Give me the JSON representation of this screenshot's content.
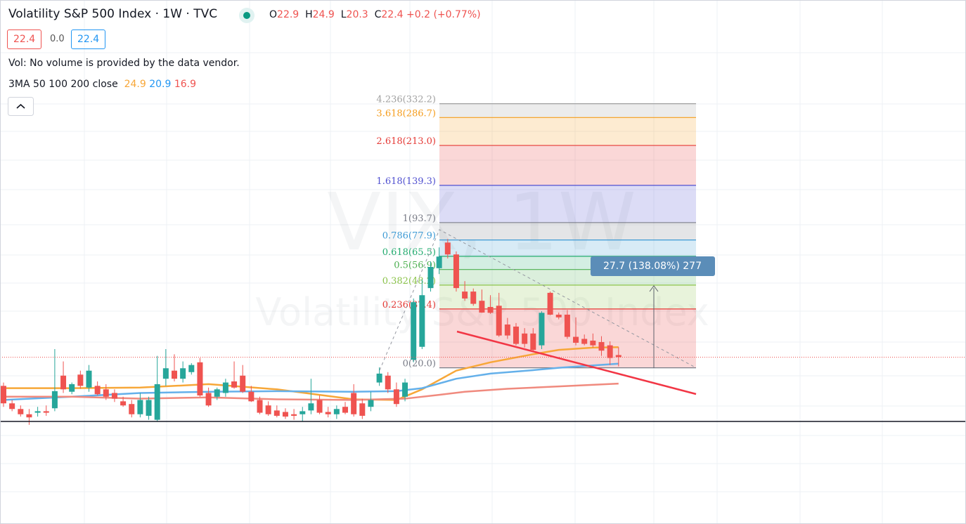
{
  "header": {
    "title": "Volatility S&P 500 Index · 1W · TVC",
    "ohlc_letters": [
      "O",
      "H",
      "L",
      "C"
    ],
    "change": "+0.2 (+0.77%)",
    "quote": [
      "22.4",
      "0.0",
      "22.4"
    ],
    "volume_note": "Vol: No volume is provided by the data vendor.",
    "ma_title": "3MA 50 100 200 close"
  },
  "chart_data": {
    "type": "candlestick",
    "log": true,
    "ylim": [
      11.3,
      351.6
    ],
    "up_color": "#26a69a",
    "down_color": "#ef5350",
    "watermark": [
      "VIX, 1W",
      "Volatility S&P 500 Index"
    ],
    "candles": [
      [
        16.5,
        17.1,
        13.2,
        13.7
      ],
      [
        13.7,
        14.2,
        12.6,
        12.9
      ],
      [
        12.9,
        13.4,
        11.9,
        12.2
      ],
      [
        12.2,
        12.9,
        10.9,
        11.8
      ],
      [
        12.4,
        13.2,
        11.9,
        12.6
      ],
      [
        12.6,
        13.4,
        12.0,
        12.4
      ],
      [
        13.0,
        24.4,
        12.6,
        15.6
      ],
      [
        18.4,
        21.4,
        15.3,
        15.9
      ],
      [
        15.5,
        17.1,
        15.1,
        16.8
      ],
      [
        18.6,
        19.4,
        16.0,
        16.5
      ],
      [
        16.2,
        20.6,
        15.5,
        19.4
      ],
      [
        16.5,
        17.3,
        14.9,
        15.1
      ],
      [
        15.9,
        16.8,
        14.2,
        14.7
      ],
      [
        15.3,
        15.9,
        13.9,
        14.4
      ],
      [
        14.0,
        14.7,
        13.2,
        13.4
      ],
      [
        13.6,
        14.2,
        11.8,
        12.2
      ],
      [
        12.2,
        15.3,
        11.8,
        14.2
      ],
      [
        12.0,
        14.7,
        11.5,
        14.2
      ],
      [
        11.5,
        22.7,
        11.3,
        16.8
      ],
      [
        17.8,
        24.4,
        16.5,
        19.9
      ],
      [
        19.4,
        23.1,
        17.3,
        17.8
      ],
      [
        17.8,
        21.4,
        17.1,
        19.9
      ],
      [
        19.1,
        21.0,
        18.6,
        20.6
      ],
      [
        21.2,
        22.2,
        14.7,
        14.9
      ],
      [
        15.3,
        16.2,
        13.2,
        13.4
      ],
      [
        14.7,
        16.2,
        14.2,
        15.9
      ],
      [
        15.3,
        17.8,
        14.7,
        17.1
      ],
      [
        17.3,
        21.4,
        16.0,
        16.2
      ],
      [
        18.4,
        20.6,
        15.3,
        15.5
      ],
      [
        15.5,
        16.5,
        13.9,
        14.0
      ],
      [
        14.2,
        14.7,
        12.2,
        12.4
      ],
      [
        13.4,
        14.0,
        12.0,
        12.2
      ],
      [
        12.7,
        13.4,
        11.8,
        12.0
      ],
      [
        12.5,
        13.0,
        11.6,
        11.9
      ],
      [
        12.2,
        12.9,
        11.5,
        12.0
      ],
      [
        12.2,
        13.2,
        11.3,
        12.6
      ],
      [
        12.7,
        17.8,
        12.2,
        13.7
      ],
      [
        14.2,
        14.9,
        12.2,
        12.4
      ],
      [
        12.5,
        13.2,
        11.8,
        12.2
      ],
      [
        12.2,
        13.4,
        11.6,
        12.9
      ],
      [
        13.2,
        13.9,
        12.2,
        12.4
      ],
      [
        15.3,
        16.8,
        11.9,
        12.2
      ],
      [
        13.7,
        14.4,
        11.6,
        12.0
      ],
      [
        13.2,
        15.5,
        12.6,
        14.2
      ],
      [
        17.1,
        20.1,
        16.5,
        18.8
      ],
      [
        18.4,
        19.1,
        15.3,
        15.9
      ],
      [
        15.9,
        17.1,
        13.2,
        13.6
      ],
      [
        14.7,
        17.8,
        14.0,
        17.1
      ],
      [
        21.8,
        41.8,
        21.2,
        40.2
      ],
      [
        25.0,
        51.2,
        24.4,
        43.3
      ],
      [
        46.7,
        62.0,
        45.0,
        58.5
      ],
      [
        57.7,
        72.0,
        54.2,
        65.3
      ],
      [
        75.8,
        78.7,
        64.0,
        66.8
      ],
      [
        66.8,
        69.0,
        45.0,
        46.7
      ],
      [
        45.0,
        50.3,
        40.8,
        41.8
      ],
      [
        45.0,
        46.5,
        38.7,
        39.5
      ],
      [
        40.8,
        46.0,
        35.9,
        36.0
      ],
      [
        38.2,
        43.3,
        35.5,
        35.9
      ],
      [
        38.7,
        44.4,
        27.8,
        28.2
      ],
      [
        31.7,
        34.0,
        27.2,
        28.2
      ],
      [
        31.0,
        32.2,
        25.4,
        25.8
      ],
      [
        28.8,
        30.5,
        24.8,
        25.8
      ],
      [
        28.8,
        30.5,
        24.0,
        24.2
      ],
      [
        25.4,
        36.5,
        24.4,
        35.9
      ],
      [
        44.4,
        45.0,
        35.0,
        35.2
      ],
      [
        35.2,
        36.0,
        33.5,
        34.2
      ],
      [
        35.2,
        37.0,
        27.2,
        27.8
      ],
      [
        27.8,
        34.2,
        25.4,
        26.1
      ],
      [
        27.2,
        28.5,
        25.4,
        25.8
      ],
      [
        26.7,
        28.8,
        24.8,
        25.4
      ],
      [
        26.3,
        28.0,
        22.7,
        24.0
      ],
      [
        25.4,
        26.5,
        20.6,
        22.2
      ],
      [
        22.9,
        24.9,
        20.3,
        22.4
      ]
    ],
    "series": [
      {
        "color": "#f7a738",
        "x": [
          0,
          8,
          16,
          24,
          32,
          41,
          46,
          49,
          53,
          57,
          62,
          65,
          69,
          72
        ],
        "values": [
          16.1,
          16.1,
          16.2,
          16.8,
          15.9,
          14.3,
          14.2,
          15.9,
          19.4,
          21.2,
          23.1,
          24.2,
          24.8,
          24.9
        ]
      },
      {
        "color": "#64b0ea",
        "x": [
          0,
          8,
          16,
          24,
          32,
          41,
          46,
          49,
          53,
          57,
          62,
          65,
          72
        ],
        "values": [
          14.2,
          14.7,
          15.3,
          15.5,
          15.6,
          15.5,
          15.6,
          16.1,
          17.8,
          18.8,
          19.5,
          20.0,
          20.9
        ]
      },
      {
        "color": "#f08a7e",
        "x": [
          0,
          8,
          16,
          24,
          32,
          41,
          47,
          51,
          54,
          59,
          65,
          72
        ],
        "values": [
          14.7,
          14.7,
          14.4,
          14.6,
          14.3,
          14.2,
          14.4,
          15.0,
          15.5,
          16.0,
          16.4,
          16.9
        ]
      }
    ],
    "fib": [
      {
        "label": "0(20.0)",
        "price": 20.0,
        "color": "#787b86"
      },
      {
        "label": "0.236(37.4)",
        "price": 37.4,
        "color": "#e53935"
      },
      {
        "label": "0.382(48.2)",
        "price": 48.2,
        "color": "#8bc34a"
      },
      {
        "label": "0.5(56.9)",
        "price": 56.9,
        "color": "#4caf50"
      },
      {
        "label": "0.618(65.5)",
        "price": 65.5,
        "color": "#22ab6f"
      },
      {
        "label": "0.786(77.9)",
        "price": 77.9,
        "color": "#3d9ad4"
      },
      {
        "label": "1(93.7)",
        "price": 93.7,
        "color": "#787b86"
      },
      {
        "label": "1.618(139.3)",
        "price": 139.3,
        "color": "#5050d0"
      },
      {
        "label": "2.618(213.0)",
        "price": 213.0,
        "color": "#e53935"
      },
      {
        "label": "3.618(286.7)",
        "price": 286.7,
        "color": "#f59c1b"
      },
      {
        "label": "4.236(332.2)",
        "price": 332.2,
        "color": "#a0a0a0"
      }
    ],
    "measure": "27.7 (138.08%) 277"
  }
}
